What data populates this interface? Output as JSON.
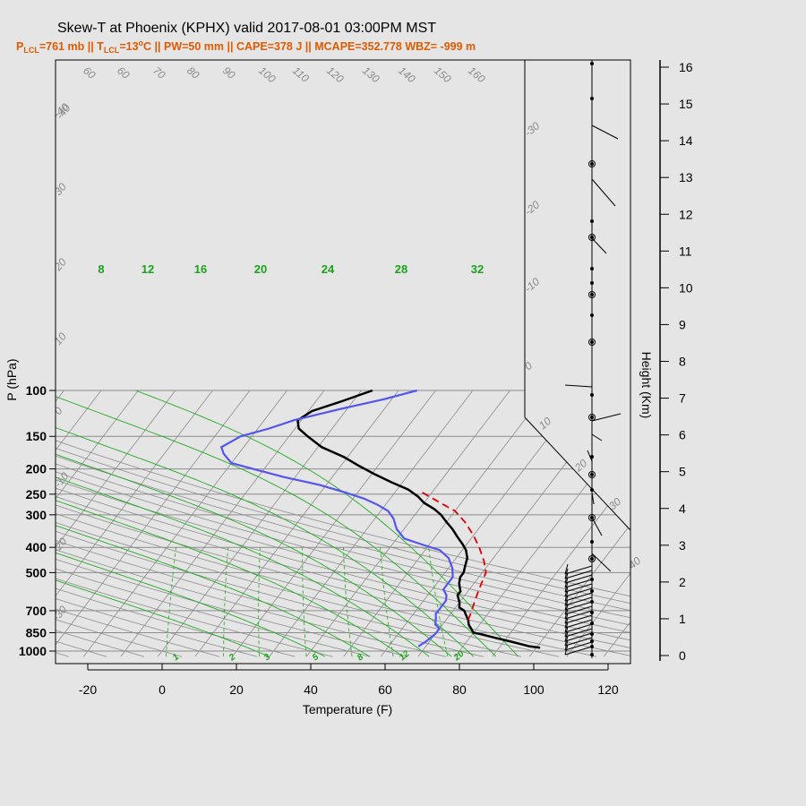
{
  "title": "Skew-T at Phoenix (KPHX) valid 2017-08-01 03:00PM MST",
  "subtitle": {
    "p_lcl": "P",
    "p_lcl_sub": "LCL",
    "p_lcl_rest": "=761 mb || T",
    "t_lcl_sub": "LCL",
    "t_lcl_rest": "=13",
    "deg": "o",
    "rest": "C || PW=50 mm || CAPE=378 J || MCAPE=352.778 WBZ= -999 m"
  },
  "colors": {
    "temperature": "#000000",
    "dewpoint": "#5555ee",
    "parcel": "#dd0000",
    "mixing_ratio": "#22aa22",
    "grid": "#8c8c8c",
    "background": "#e5e5e5",
    "subtitle": "#e05a00"
  },
  "chart_data": {
    "type": "line",
    "title": "Skew-T at Phoenix (KPHX) valid 2017-08-01 03:00PM MST",
    "xlabel": "Temperature (F)",
    "ylabel": "P (hPa)",
    "y2label": "Height (Km)",
    "xlim": [
      -29,
      125
    ],
    "ylim_hpa": [
      1050,
      100
    ],
    "y_scale": "log",
    "x_ticks": [
      -20,
      0,
      20,
      40,
      60,
      80,
      100,
      120
    ],
    "y_ticks": [
      100,
      150,
      200,
      250,
      300,
      400,
      500,
      700,
      850,
      1000
    ],
    "height_ticks_km": [
      0,
      1,
      2,
      3,
      4,
      5,
      6,
      7,
      8,
      9,
      10,
      11,
      12,
      13,
      14,
      15,
      16
    ],
    "isotherm_labels": [
      -40,
      -30,
      -20,
      -10,
      0,
      10,
      20,
      30,
      40
    ],
    "dry_adiabat_labels": [
      -30,
      -20,
      -10,
      0,
      10,
      20,
      30,
      40,
      50,
      60,
      70,
      80,
      90,
      100,
      110,
      120,
      130,
      140,
      150,
      160
    ],
    "mixing_ratio_lines_top": [
      8,
      12,
      16,
      20,
      24,
      28,
      32
    ],
    "mixing_ratio_lines_bottom": [
      1,
      2,
      3,
      5,
      8,
      12,
      20
    ],
    "grid": true,
    "series": [
      {
        "name": "temperature",
        "points": [
          [
            101,
            970
          ],
          [
            98,
            960
          ],
          [
            92,
            920
          ],
          [
            87,
            890
          ],
          [
            82,
            860
          ],
          [
            80,
            850
          ],
          [
            78,
            810
          ],
          [
            77,
            790
          ],
          [
            76,
            760
          ],
          [
            75,
            740
          ],
          [
            74,
            720
          ],
          [
            73,
            700
          ],
          [
            71,
            680
          ],
          [
            70,
            650
          ],
          [
            69,
            630
          ],
          [
            68,
            610
          ],
          [
            68,
            590
          ],
          [
            67,
            570
          ],
          [
            66,
            550
          ],
          [
            65,
            520
          ],
          [
            65,
            500
          ],
          [
            64,
            470
          ],
          [
            63,
            440
          ],
          [
            61,
            410
          ],
          [
            59,
            390
          ],
          [
            56,
            365
          ],
          [
            53,
            340
          ],
          [
            50,
            320
          ],
          [
            47,
            300
          ],
          [
            44,
            285
          ],
          [
            40,
            270
          ],
          [
            37,
            255
          ],
          [
            33,
            240
          ],
          [
            27,
            225
          ],
          [
            21,
            210
          ],
          [
            15,
            195
          ],
          [
            9,
            180
          ],
          [
            1,
            165
          ],
          [
            -5,
            150
          ],
          [
            -9,
            140
          ],
          [
            -11,
            130
          ],
          [
            -9,
            120
          ],
          [
            -3,
            110
          ],
          [
            3,
            100
          ]
        ]
      },
      {
        "name": "dewpoint",
        "points": [
          [
            68,
            960
          ],
          [
            69,
            920
          ],
          [
            70,
            860
          ],
          [
            70,
            820
          ],
          [
            68,
            790
          ],
          [
            67,
            750
          ],
          [
            66,
            720
          ],
          [
            66,
            700
          ],
          [
            66,
            670
          ],
          [
            66,
            640
          ],
          [
            65,
            610
          ],
          [
            63,
            580
          ],
          [
            63,
            555
          ],
          [
            63,
            520
          ],
          [
            61,
            480
          ],
          [
            58,
            440
          ],
          [
            54,
            410
          ],
          [
            48,
            390
          ],
          [
            42,
            370
          ],
          [
            38,
            340
          ],
          [
            35,
            310
          ],
          [
            32,
            290
          ],
          [
            28,
            275
          ],
          [
            23,
            260
          ],
          [
            16,
            245
          ],
          [
            8,
            230
          ],
          [
            -3,
            215
          ],
          [
            -13,
            200
          ],
          [
            -20,
            190
          ],
          [
            -24,
            175
          ],
          [
            -26,
            165
          ],
          [
            -23,
            150
          ],
          [
            -17,
            140
          ],
          [
            -12,
            130
          ],
          [
            -2,
            118
          ],
          [
            8,
            108
          ],
          [
            15,
            100
          ]
        ]
      },
      {
        "name": "parcel",
        "points": [
          [
            76,
            761
          ],
          [
            75,
            700
          ],
          [
            74,
            650
          ],
          [
            73,
            600
          ],
          [
            72,
            550
          ],
          [
            71,
            500
          ],
          [
            68,
            450
          ],
          [
            64,
            400
          ],
          [
            60,
            360
          ],
          [
            55,
            320
          ],
          [
            50,
            290
          ],
          [
            43,
            265
          ],
          [
            37,
            245
          ]
        ]
      }
    ]
  }
}
